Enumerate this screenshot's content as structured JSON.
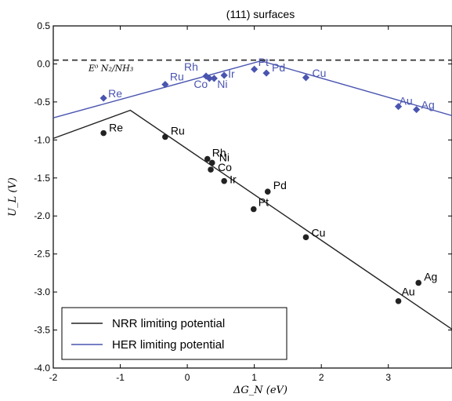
{
  "chart_data": {
    "type": "scatter",
    "title": "(111) surfaces",
    "xlabel": "ΔG_N (eV)",
    "ylabel": "U_L (V)",
    "xlim": [
      -2,
      3.95
    ],
    "ylim": [
      -4.0,
      0.5
    ],
    "xticks": [
      "-2",
      "-1",
      "0",
      "1",
      "2",
      "3"
    ],
    "xtick_values": [
      -2,
      -1,
      0,
      1,
      2,
      3
    ],
    "yticks": [
      "-4.0",
      "-3.5",
      "-3.0",
      "-2.5",
      "-2.0",
      "-1.5",
      "-1.0",
      "-0.5",
      "0.0",
      "0.5"
    ],
    "ytick_values": [
      -4.0,
      -3.5,
      -3.0,
      -2.5,
      -2.0,
      -1.5,
      -1.0,
      -0.5,
      0.0,
      0.5
    ],
    "grid": false,
    "legend_position": "lower-left",
    "reference_line": {
      "y": 0.05,
      "label": "E⁰ N₂/NH₃",
      "style": "dashed"
    },
    "series": [
      {
        "name": "NRR limiting potential",
        "color": "#222222",
        "marker": "circle",
        "line": [
          {
            "x": -2.0,
            "y": -0.98
          },
          {
            "x": -0.85,
            "y": -0.61
          },
          {
            "x": 3.95,
            "y": -3.49
          }
        ],
        "points": [
          {
            "label": "Re",
            "x": -1.25,
            "y": -0.91
          },
          {
            "label": "Ru",
            "x": -0.33,
            "y": -0.96
          },
          {
            "label": "Rh",
            "x": 0.3,
            "y": -1.25
          },
          {
            "label": "Ni",
            "x": 0.37,
            "y": -1.3
          },
          {
            "label": "Co",
            "x": 0.35,
            "y": -1.39
          },
          {
            "label": "Ir",
            "x": 0.55,
            "y": -1.54
          },
          {
            "label": "Pd",
            "x": 1.2,
            "y": -1.68
          },
          {
            "label": "Pt",
            "x": 0.99,
            "y": -1.91
          },
          {
            "label": "Cu",
            "x": 1.77,
            "y": -2.28
          },
          {
            "label": "Ag",
            "x": 3.45,
            "y": -2.88
          },
          {
            "label": "Au",
            "x": 3.15,
            "y": -3.12
          }
        ]
      },
      {
        "name": "HER limiting potential",
        "color": "#4a55b0",
        "marker": "diamond",
        "line": [
          {
            "x": -2.0,
            "y": -0.71
          },
          {
            "x": 1.1,
            "y": 0.04
          },
          {
            "x": 3.95,
            "y": -0.68
          }
        ],
        "points": [
          {
            "label": "Re",
            "x": -1.25,
            "y": -0.45
          },
          {
            "label": "Ru",
            "x": -0.33,
            "y": -0.27
          },
          {
            "label": "Rh",
            "x": 0.28,
            "y": -0.16
          },
          {
            "label": "Co",
            "x": 0.33,
            "y": -0.19
          },
          {
            "label": "Ni",
            "x": 0.4,
            "y": -0.19
          },
          {
            "label": "Ir",
            "x": 0.55,
            "y": -0.15
          },
          {
            "label": "Pt",
            "x": 1.0,
            "y": -0.07
          },
          {
            "label": "Pd",
            "x": 1.18,
            "y": -0.12
          },
          {
            "label": "Cu",
            "x": 1.77,
            "y": -0.18
          },
          {
            "label": "Au",
            "x": 3.15,
            "y": -0.56
          },
          {
            "label": "Ag",
            "x": 3.42,
            "y": -0.6
          }
        ]
      }
    ]
  }
}
